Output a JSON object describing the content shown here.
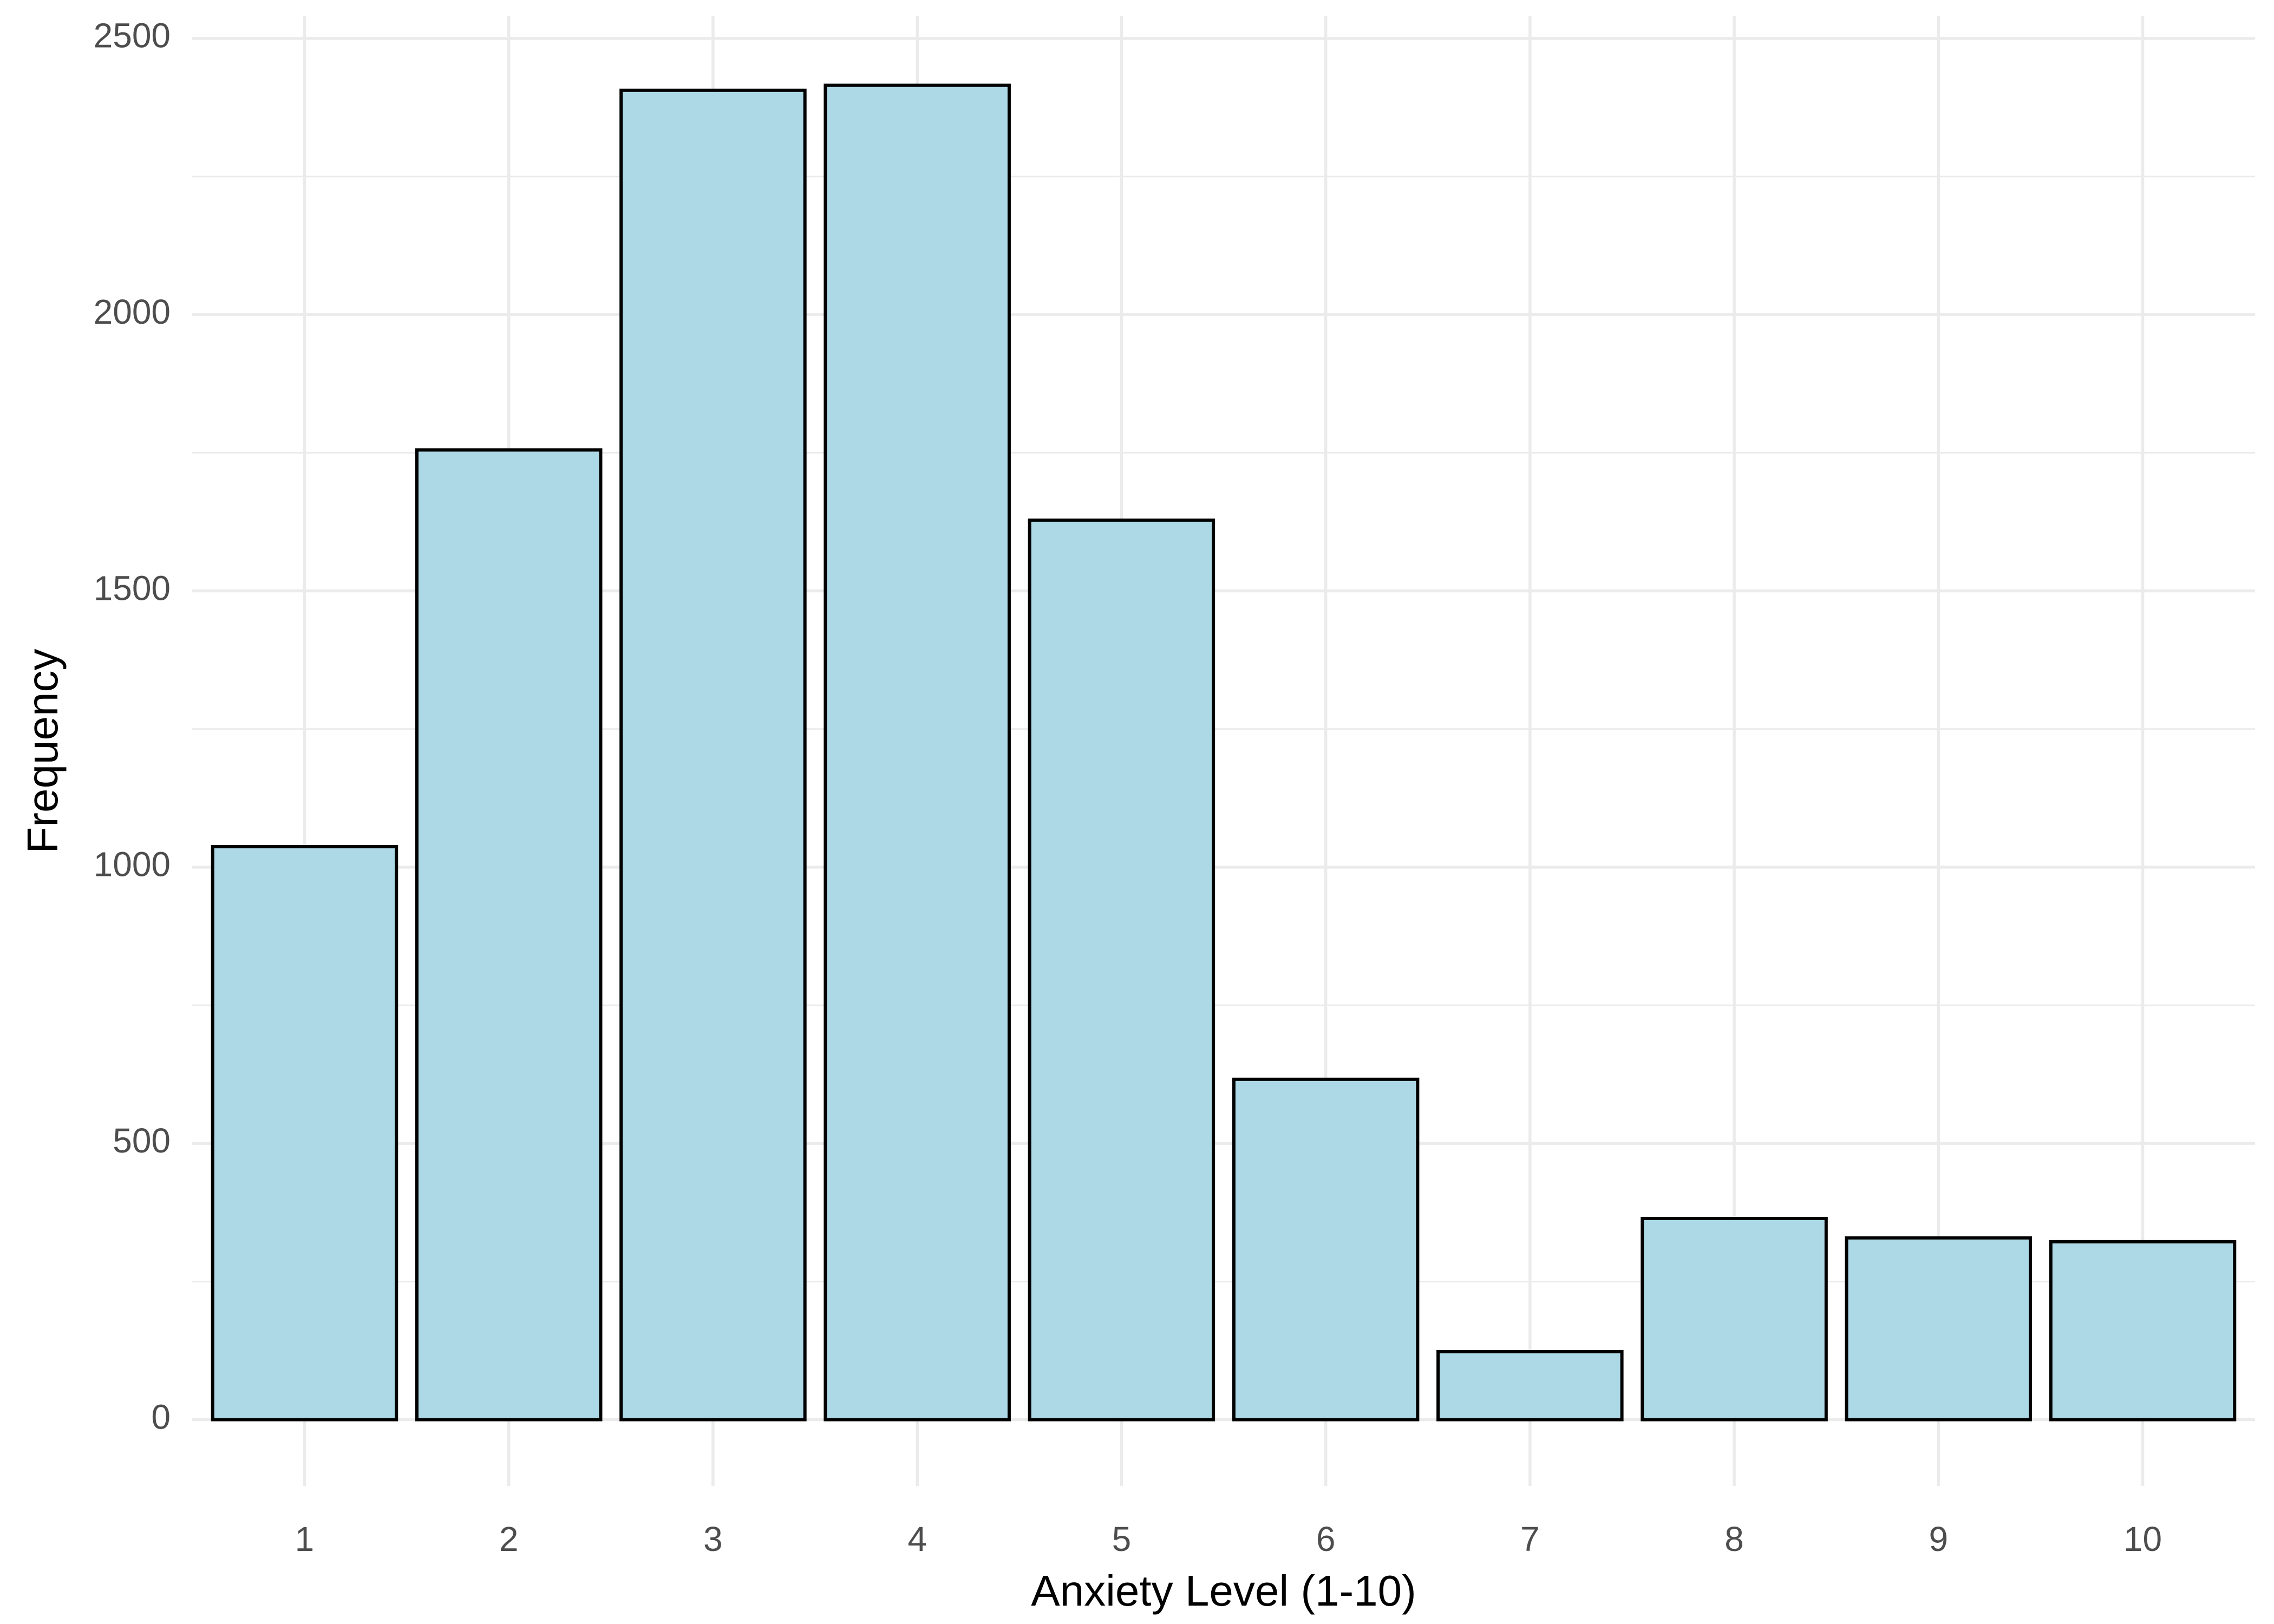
{
  "chart_data": {
    "type": "bar",
    "title": "",
    "xlabel": "Anxiety Level (1-10)",
    "ylabel": "Frequency",
    "categories": [
      "1",
      "2",
      "3",
      "4",
      "5",
      "6",
      "7",
      "8",
      "9",
      "10"
    ],
    "values": [
      1037,
      1755,
      2406,
      2415,
      1628,
      616,
      123,
      364,
      329,
      322
    ],
    "ylim": [
      -120,
      2540
    ],
    "yticks": [
      0,
      500,
      1000,
      1500,
      2000,
      2500
    ],
    "grid": true,
    "bar_fill": "#ADD8E6",
    "bar_outline": "#000000"
  }
}
